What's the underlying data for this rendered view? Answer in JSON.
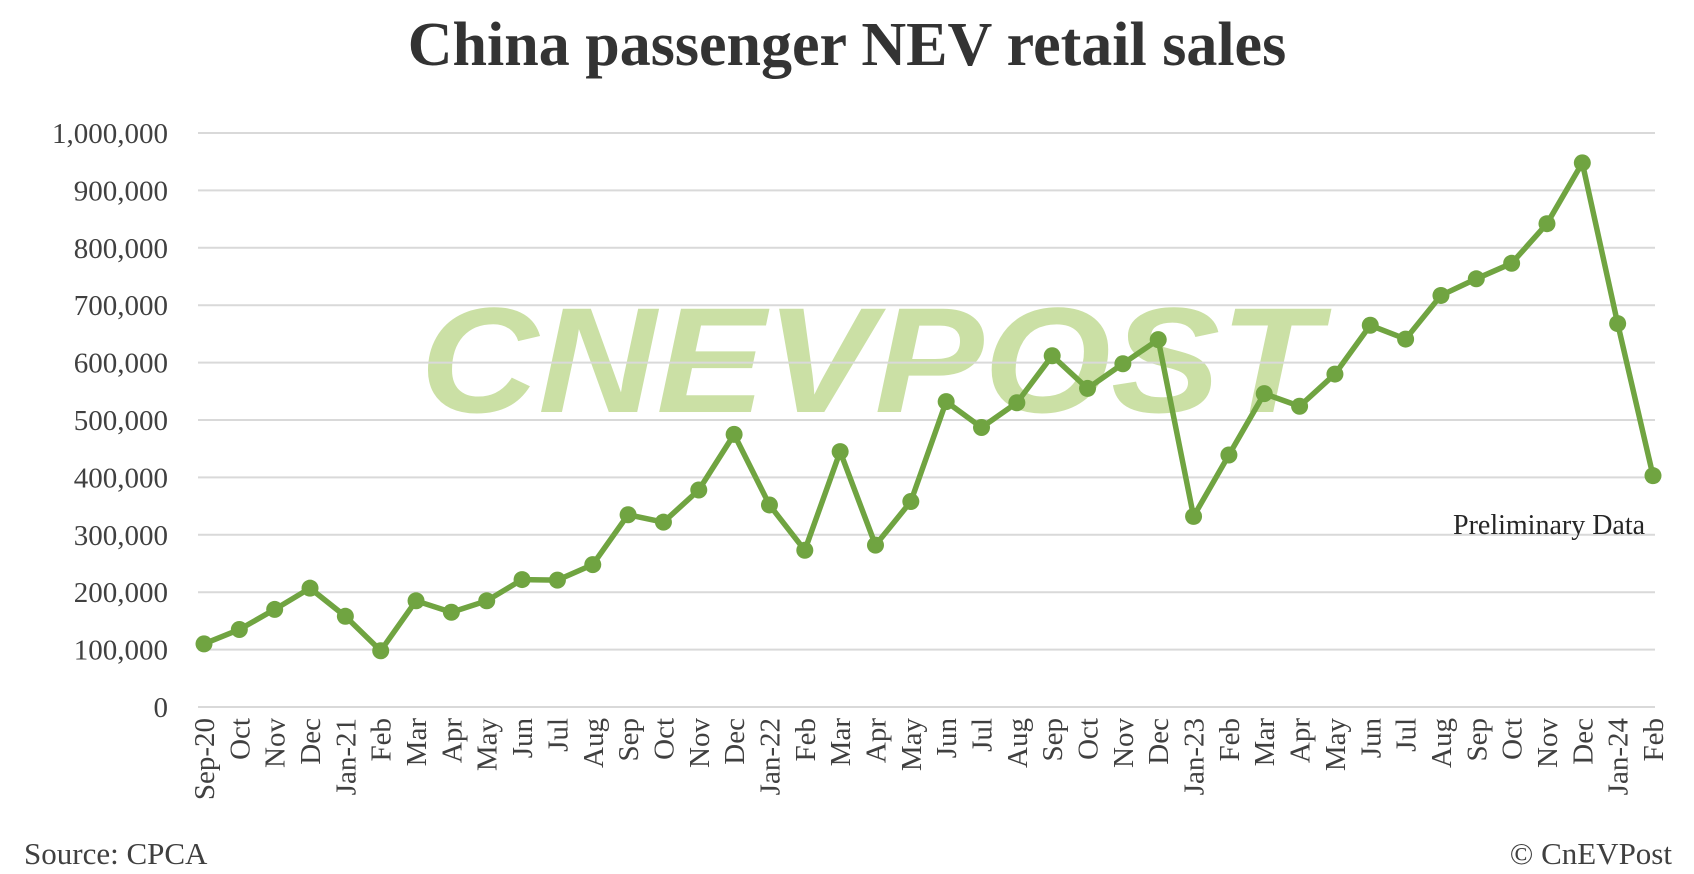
{
  "chart_data": {
    "type": "line",
    "title": "China passenger NEV retail sales",
    "xlabel": "",
    "ylabel": "",
    "ylim": [
      0,
      1000000
    ],
    "yticks": [
      "0",
      "100,000",
      "200,000",
      "300,000",
      "400,000",
      "500,000",
      "600,000",
      "700,000",
      "800,000",
      "900,000",
      "1,000,000"
    ],
    "categories": [
      "Sep-20",
      "Oct",
      "Nov",
      "Dec",
      "Jan-21",
      "Feb",
      "Mar",
      "Apr",
      "May",
      "Jun",
      "Jul",
      "Aug",
      "Sep",
      "Oct",
      "Nov",
      "Dec",
      "Jan-22",
      "Feb",
      "Mar",
      "Apr",
      "May",
      "Jun",
      "Jul",
      "Aug",
      "Sep",
      "Oct",
      "Nov",
      "Dec",
      "Jan-23",
      "Feb",
      "Mar",
      "Apr",
      "May",
      "Jun",
      "Jul",
      "Aug",
      "Sep",
      "Oct",
      "Nov",
      "Dec",
      "Jan-24",
      "Feb"
    ],
    "series": [
      {
        "values": [
          110000,
          135000,
          170000,
          207000,
          158000,
          98000,
          185000,
          165000,
          185000,
          222000,
          221000,
          248000,
          335000,
          322000,
          378000,
          475000,
          352000,
          273000,
          445000,
          282000,
          358000,
          532000,
          487000,
          530000,
          612000,
          555000,
          598000,
          640000,
          332000,
          439000,
          546000,
          524000,
          580000,
          665000,
          641000,
          717000,
          746000,
          773000,
          842000,
          948000,
          668000,
          403000
        ],
        "color": "#70a441"
      }
    ],
    "annotation": "Preliminary Data",
    "grid": true,
    "gridline_color": "#d9d9d9",
    "watermark": "CNEVPOST",
    "watermark_color": "#a9cd6a"
  },
  "footer": {
    "source": "Source: CPCA",
    "copyright": "© CnEVPost"
  }
}
